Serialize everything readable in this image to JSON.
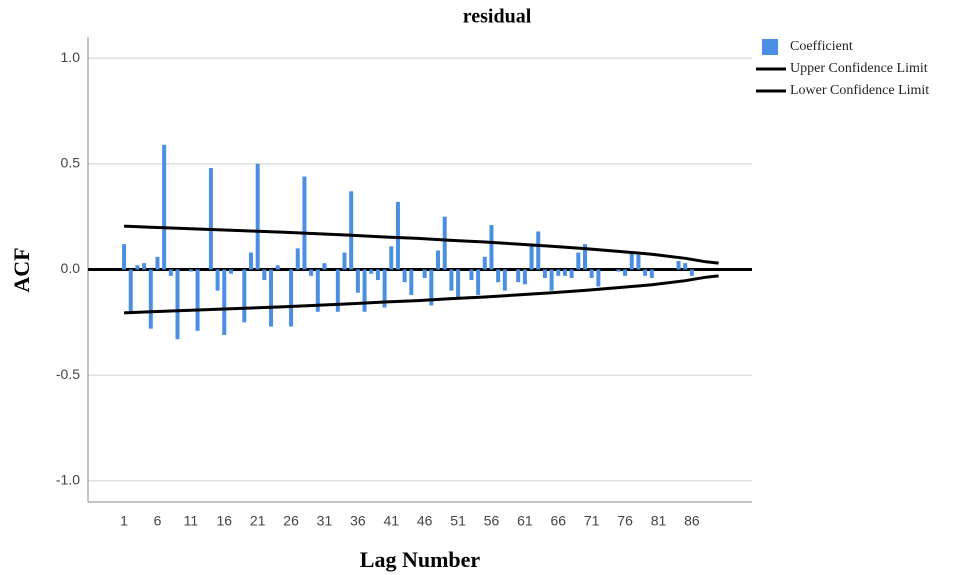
{
  "chart_data": {
    "type": "bar",
    "title": "residual",
    "x_label": "Lag Number",
    "y_label": "ACF",
    "x": [
      1,
      2,
      3,
      4,
      5,
      6,
      7,
      8,
      9,
      10,
      11,
      12,
      13,
      14,
      15,
      16,
      17,
      18,
      19,
      20,
      21,
      22,
      23,
      24,
      25,
      26,
      27,
      28,
      29,
      30,
      31,
      32,
      33,
      34,
      35,
      36,
      37,
      38,
      39,
      40,
      41,
      42,
      43,
      44,
      45,
      46,
      47,
      48,
      49,
      50,
      51,
      52,
      53,
      54,
      55,
      56,
      57,
      58,
      59,
      60,
      61,
      62,
      63,
      64,
      65,
      66,
      67,
      68,
      69,
      70,
      71,
      72,
      73,
      74,
      75,
      76,
      77,
      78,
      79,
      80,
      81,
      82,
      83,
      84,
      85,
      86
    ],
    "series": [
      {
        "name": "Coefficient",
        "type": "bar",
        "color": "#4a8fe3",
        "values": [
          0.12,
          -0.21,
          0.02,
          0.03,
          -0.28,
          0.06,
          0.59,
          -0.03,
          -0.33,
          0.0,
          -0.01,
          -0.29,
          0.0,
          0.48,
          -0.1,
          -0.31,
          -0.02,
          0.0,
          -0.25,
          0.08,
          0.5,
          -0.05,
          -0.27,
          0.02,
          0.0,
          -0.27,
          0.1,
          0.44,
          -0.03,
          -0.2,
          0.03,
          0.0,
          -0.2,
          0.08,
          0.37,
          -0.11,
          -0.2,
          -0.02,
          -0.05,
          -0.18,
          0.11,
          0.32,
          -0.06,
          -0.12,
          0.0,
          -0.04,
          -0.17,
          0.09,
          0.25,
          -0.1,
          -0.13,
          0.0,
          -0.05,
          -0.12,
          0.06,
          0.21,
          -0.06,
          -0.1,
          0.0,
          -0.06,
          -0.07,
          0.11,
          0.18,
          -0.04,
          -0.1,
          -0.03,
          -0.03,
          -0.04,
          0.08,
          0.12,
          -0.04,
          -0.08,
          0.0,
          0.0,
          -0.01,
          -0.03,
          0.08,
          0.07,
          -0.03,
          -0.04,
          0.0,
          0.0,
          0.0,
          0.04,
          0.03,
          -0.03
        ]
      },
      {
        "name": "Upper Confidence Limit",
        "type": "line",
        "color": "#000000",
        "x": [
          1,
          5,
          10,
          15,
          20,
          25,
          30,
          35,
          40,
          45,
          50,
          55,
          60,
          65,
          70,
          75,
          80,
          85,
          88,
          90
        ],
        "values": [
          0.205,
          0.2,
          0.194,
          0.188,
          0.182,
          0.176,
          0.169,
          0.162,
          0.154,
          0.147,
          0.138,
          0.13,
          0.12,
          0.11,
          0.099,
          0.086,
          0.072,
          0.053,
          0.037,
          0.03
        ]
      },
      {
        "name": "Lower Confidence Limit",
        "type": "line",
        "color": "#000000",
        "x": [
          1,
          5,
          10,
          15,
          20,
          25,
          30,
          35,
          40,
          45,
          50,
          55,
          60,
          65,
          70,
          75,
          80,
          85,
          88,
          90
        ],
        "values": [
          -0.205,
          -0.2,
          -0.194,
          -0.188,
          -0.182,
          -0.176,
          -0.169,
          -0.162,
          -0.154,
          -0.147,
          -0.138,
          -0.13,
          -0.12,
          -0.11,
          -0.099,
          -0.086,
          -0.072,
          -0.053,
          -0.037,
          -0.03
        ]
      }
    ],
    "xlim": [
      -4.4,
      95
    ],
    "xticks": [
      1,
      6,
      11,
      16,
      21,
      26,
      31,
      36,
      41,
      46,
      51,
      56,
      61,
      66,
      71,
      76,
      81,
      86
    ],
    "ylim": [
      -1.1,
      1.1
    ],
    "yticks": [
      {
        "value": 1,
        "label": "1.0"
      },
      0.5,
      {
        "value": 0,
        "label": "0.0"
      },
      -0.5,
      {
        "value": -1,
        "label": "-1.0"
      }
    ],
    "grid": true
  }
}
